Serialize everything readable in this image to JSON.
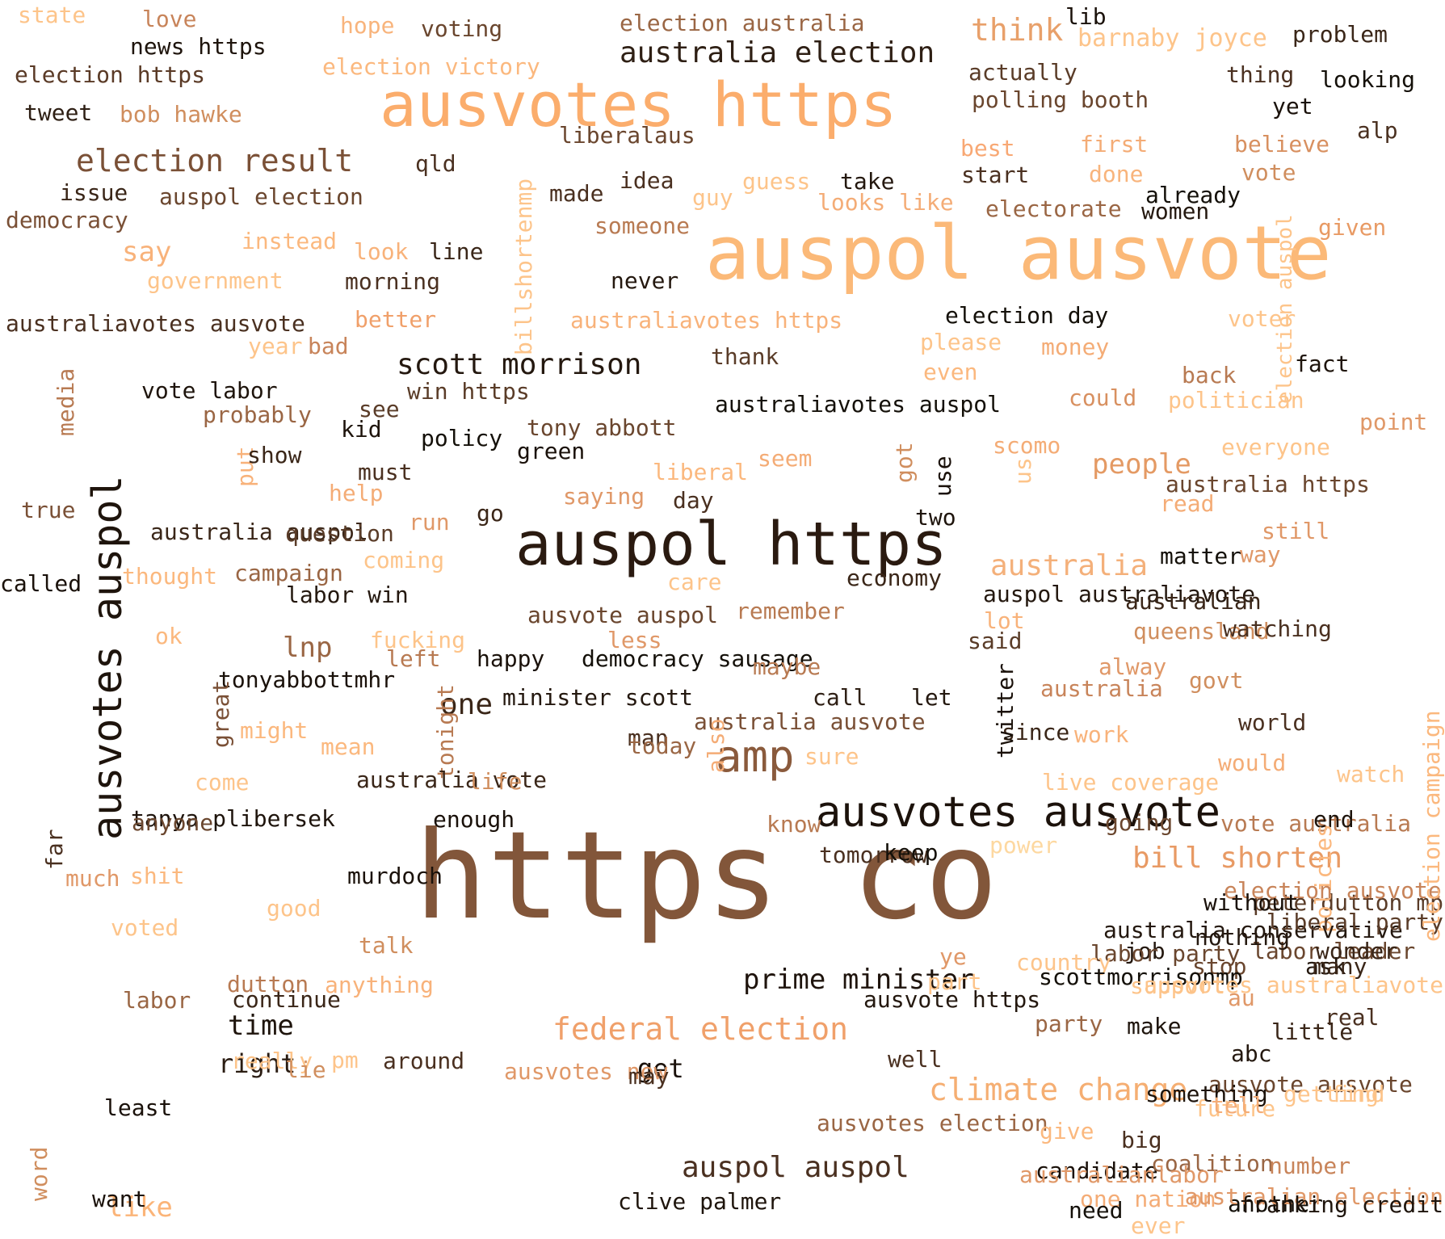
{
  "words": [
    {
      "text": "https co",
      "color": "#82563a"
    },
    {
      "text": "auspol ausvote",
      "color": "#fbb978"
    },
    {
      "text": "ausvotes https",
      "color": "#fbad6c"
    },
    {
      "text": "auspol https",
      "color": "#2a1a10"
    },
    {
      "text": "ausvotes auspol",
      "color": "#1e140c"
    },
    {
      "text": "ausvotes ausvote",
      "color": "#1c120b"
    },
    {
      "text": "election result",
      "color": "#7a5036"
    },
    {
      "text": "australia election",
      "color": "#2e1f14"
    },
    {
      "text": "scott morrison",
      "color": "#24180f"
    },
    {
      "text": "amp",
      "color": "#8a5a3c"
    },
    {
      "text": "federal election",
      "color": "#f0a06a"
    },
    {
      "text": "climate change",
      "color": "#f5ae72"
    },
    {
      "text": "bill shorten",
      "color": "#e89a64"
    },
    {
      "text": "prime minister",
      "color": "#1f140d"
    },
    {
      "text": "auspol auspol",
      "color": "#4a3020"
    },
    {
      "text": "think",
      "color": "#e8a06a"
    },
    {
      "text": "lnp",
      "color": "#9a6644"
    },
    {
      "text": "one",
      "color": "#3a2618"
    },
    {
      "text": "australia",
      "color": "#f4b07a"
    },
    {
      "text": "people",
      "color": "#e49a64"
    },
    {
      "text": "time",
      "color": "#1e140c"
    },
    {
      "text": "like",
      "color": "#fbb478"
    },
    {
      "text": "get",
      "color": "#1a110a"
    },
    {
      "text": "right",
      "color": "#2a1c12"
    },
    {
      "text": "say",
      "color": "#f8b27a"
    },
    {
      "text": "state",
      "color": "#fdc48a"
    },
    {
      "text": "love",
      "color": "#c8845a"
    },
    {
      "text": "hope",
      "color": "#f8b47c"
    },
    {
      "text": "voting",
      "color": "#6a462e"
    },
    {
      "text": "election australia",
      "color": "#9a6644"
    },
    {
      "text": "lib",
      "color": "#1a110a"
    },
    {
      "text": "barnaby joyce",
      "color": "#fdc48a"
    },
    {
      "text": "problem",
      "color": "#3a2618"
    },
    {
      "text": "news https",
      "color": "#1e140c"
    },
    {
      "text": "election victory",
      "color": "#fbb87e"
    },
    {
      "text": "election https",
      "color": "#5a3a26"
    },
    {
      "text": "actually",
      "color": "#5a3c28"
    },
    {
      "text": "thing",
      "color": "#4a3020"
    },
    {
      "text": "looking",
      "color": "#141009"
    },
    {
      "text": "polling booth",
      "color": "#6a462e"
    },
    {
      "text": "yet",
      "color": "#1a110a"
    },
    {
      "text": "tweet",
      "color": "#2e1f14"
    },
    {
      "text": "bob hawke",
      "color": "#d08e5e"
    },
    {
      "text": "liberalaus",
      "color": "#6a462e"
    },
    {
      "text": "alp",
      "color": "#4a3020"
    },
    {
      "text": "best",
      "color": "#f8a874"
    },
    {
      "text": "first",
      "color": "#f4ac76"
    },
    {
      "text": "believe",
      "color": "#d89060"
    },
    {
      "text": "qld",
      "color": "#4a3020"
    },
    {
      "text": "billshortenmp",
      "color": "#fdc48a"
    },
    {
      "text": "done",
      "color": "#f8b47c"
    },
    {
      "text": "vote",
      "color": "#d08e5e"
    },
    {
      "text": "issue",
      "color": "#3a2618"
    },
    {
      "text": "auspol election",
      "color": "#6a462e"
    },
    {
      "text": "made",
      "color": "#4a3020"
    },
    {
      "text": "idea",
      "color": "#4a3020"
    },
    {
      "text": "guess",
      "color": "#fdc48a"
    },
    {
      "text": "take",
      "color": "#24180f"
    },
    {
      "text": "start",
      "color": "#4a3020"
    },
    {
      "text": "already",
      "color": "#141009"
    },
    {
      "text": "democracy",
      "color": "#7a5036"
    },
    {
      "text": "guy",
      "color": "#fdc48a"
    },
    {
      "text": "looks like",
      "color": "#f4ac76"
    },
    {
      "text": "electorate",
      "color": "#9a6644"
    },
    {
      "text": "women",
      "color": "#24180f"
    },
    {
      "text": "given",
      "color": "#e89a64"
    },
    {
      "text": "election auspol",
      "color": "#fdc48a"
    },
    {
      "text": "someone",
      "color": "#b87a52"
    },
    {
      "text": "instead",
      "color": "#fbb87e"
    },
    {
      "text": "look",
      "color": "#f8b27a"
    },
    {
      "text": "line",
      "color": "#3a2618"
    },
    {
      "text": "government",
      "color": "#fdc48a"
    },
    {
      "text": "morning",
      "color": "#4a3020"
    },
    {
      "text": "never",
      "color": "#24180f"
    },
    {
      "text": "australiavotes ausvote",
      "color": "#4a3020"
    },
    {
      "text": "better",
      "color": "#f0a06a"
    },
    {
      "text": "australiavotes https",
      "color": "#f8b27a"
    },
    {
      "text": "election day",
      "color": "#141009"
    },
    {
      "text": "voter",
      "color": "#fdc48a"
    },
    {
      "text": "year",
      "color": "#fdc48a"
    },
    {
      "text": "bad",
      "color": "#c8845a"
    },
    {
      "text": "please",
      "color": "#fdc48a"
    },
    {
      "text": "money",
      "color": "#f4ac76"
    },
    {
      "text": "thank",
      "color": "#5a3c28"
    },
    {
      "text": "back",
      "color": "#b87a52"
    },
    {
      "text": "fact",
      "color": "#1e140c"
    },
    {
      "text": "even",
      "color": "#fbb87e"
    },
    {
      "text": "media",
      "color": "#b87a52"
    },
    {
      "text": "vote labor",
      "color": "#1e140c"
    },
    {
      "text": "win https",
      "color": "#5a3c28"
    },
    {
      "text": "australiavotes auspol",
      "color": "#141009"
    },
    {
      "text": "could",
      "color": "#d89060"
    },
    {
      "text": "politician",
      "color": "#fdc48a"
    },
    {
      "text": "probably",
      "color": "#9a6644"
    },
    {
      "text": "see",
      "color": "#5a3c28"
    },
    {
      "text": "point",
      "color": "#e09868"
    },
    {
      "text": "kid",
      "color": "#1e140c"
    },
    {
      "text": "policy",
      "color": "#141009"
    },
    {
      "text": "tony abbott",
      "color": "#6a462e"
    },
    {
      "text": "scomo",
      "color": "#f4ac76"
    },
    {
      "text": "green",
      "color": "#1a110a"
    },
    {
      "text": "everyone",
      "color": "#fdc48a"
    },
    {
      "text": "put",
      "color": "#f8b27a"
    },
    {
      "text": "show",
      "color": "#3a2618"
    },
    {
      "text": "got",
      "color": "#d08e5e"
    },
    {
      "text": "seem",
      "color": "#f4ac76"
    },
    {
      "text": "must",
      "color": "#4a3020"
    },
    {
      "text": "liberal",
      "color": "#fbb87e"
    },
    {
      "text": "use",
      "color": "#1a110a"
    },
    {
      "text": "australia https",
      "color": "#6a462e"
    },
    {
      "text": "help",
      "color": "#f4ac76"
    },
    {
      "text": "saying",
      "color": "#e09868"
    },
    {
      "text": "day",
      "color": "#4a3020"
    },
    {
      "text": "us",
      "color": "#fdc48a"
    },
    {
      "text": "read",
      "color": "#f4ac76"
    },
    {
      "text": "true",
      "color": "#7a5036"
    },
    {
      "text": "go",
      "color": "#3a2618"
    },
    {
      "text": "two",
      "color": "#1e140c"
    },
    {
      "text": "still",
      "color": "#e09868"
    },
    {
      "text": "run",
      "color": "#e09868"
    },
    {
      "text": "australia auspol",
      "color": "#3a2618"
    },
    {
      "text": "question",
      "color": "#5a3c28"
    },
    {
      "text": "matter",
      "color": "#141009"
    },
    {
      "text": "way",
      "color": "#e09868"
    },
    {
      "text": "called",
      "color": "#1a110a"
    },
    {
      "text": "thought",
      "color": "#fbb87e"
    },
    {
      "text": "campaign",
      "color": "#9a6644"
    },
    {
      "text": "coming",
      "color": "#fdc48a"
    },
    {
      "text": "care",
      "color": "#fdc48a"
    },
    {
      "text": "economy",
      "color": "#3a2618"
    },
    {
      "text": "labor win",
      "color": "#24180f"
    },
    {
      "text": "auspol australiavote",
      "color": "#24180f"
    },
    {
      "text": "australian",
      "color": "#3a2618"
    },
    {
      "text": "ausvote auspol",
      "color": "#6a462e"
    },
    {
      "text": "remember",
      "color": "#b87a52"
    },
    {
      "text": "lot",
      "color": "#f8b27a"
    },
    {
      "text": "queensland",
      "color": "#d08e5e"
    },
    {
      "text": "watching",
      "color": "#4a3020"
    },
    {
      "text": "ok",
      "color": "#fbb87e"
    },
    {
      "text": "fucking",
      "color": "#fdc48a"
    },
    {
      "text": "less",
      "color": "#e09868"
    },
    {
      "text": "said",
      "color": "#5a3c28"
    },
    {
      "text": "left",
      "color": "#b87a52"
    },
    {
      "text": "happy",
      "color": "#1a110a"
    },
    {
      "text": "democracy sausage",
      "color": "#141009"
    },
    {
      "text": "maybe",
      "color": "#b87a52"
    },
    {
      "text": "alway",
      "color": "#e09868"
    },
    {
      "text": "tonyabbottmhr",
      "color": "#1a110a"
    },
    {
      "text": "govt",
      "color": "#d08e5e"
    },
    {
      "text": "australia",
      "color": "#c8845a"
    },
    {
      "text": "great",
      "color": "#7a5036"
    },
    {
      "text": "minister scott",
      "color": "#24180f"
    },
    {
      "text": "call",
      "color": "#2e1f14"
    },
    {
      "text": "let",
      "color": "#24180f"
    },
    {
      "text": "tonight",
      "color": "#b87a52"
    },
    {
      "text": "australia ausvote",
      "color": "#7a5036"
    },
    {
      "text": "world",
      "color": "#4a3020"
    },
    {
      "text": "might",
      "color": "#fbb87e"
    },
    {
      "text": "man",
      "color": "#4a3020"
    },
    {
      "text": "work",
      "color": "#f8b27a"
    },
    {
      "text": "since",
      "color": "#3a2618"
    },
    {
      "text": "mean",
      "color": "#fbb87e"
    },
    {
      "text": "today",
      "color": "#9a6644"
    },
    {
      "text": "sure",
      "color": "#fdc48a"
    },
    {
      "text": "twitter",
      "color": "#1a110a"
    },
    {
      "text": "would",
      "color": "#f4ac76"
    },
    {
      "text": "come",
      "color": "#fdc48a"
    },
    {
      "text": "australia vote",
      "color": "#3a2618"
    },
    {
      "text": "life",
      "color": "#d08e5e"
    },
    {
      "text": "also",
      "color": "#f4ac76"
    },
    {
      "text": "live coverage",
      "color": "#fdc48a"
    },
    {
      "text": "watch",
      "color": "#fdc48a"
    },
    {
      "text": "vote australia",
      "color": "#b87a52"
    },
    {
      "text": "tanya plibersek",
      "color": "#1e140c"
    },
    {
      "text": "peterdutton mp",
      "color": "#5a3c28"
    },
    {
      "text": "far",
      "color": "#4a3020"
    },
    {
      "text": "anyone",
      "color": "#6a462e"
    },
    {
      "text": "enough",
      "color": "#1a110a"
    },
    {
      "text": "know",
      "color": "#b87a52"
    },
    {
      "text": "end",
      "color": "#1e140c"
    },
    {
      "text": "power",
      "color": "#fdd8a0"
    },
    {
      "text": "tomorrow",
      "color": "#4a3020"
    },
    {
      "text": "policies",
      "color": "#fbb87e"
    },
    {
      "text": "much",
      "color": "#e09868"
    },
    {
      "text": "murdoch",
      "color": "#1a110a"
    },
    {
      "text": "good",
      "color": "#fdc48a"
    },
    {
      "text": "going",
      "color": "#6a462e"
    },
    {
      "text": "election ausvote",
      "color": "#c8845a"
    },
    {
      "text": "without",
      "color": "#1a110a"
    },
    {
      "text": "australia conservative",
      "color": "#24180f"
    },
    {
      "text": "liberal party",
      "color": "#5a3c28"
    },
    {
      "text": "election campaign",
      "color": "#fbb87e"
    },
    {
      "text": "job",
      "color": "#24180f"
    },
    {
      "text": "labor leader",
      "color": "#6a462e"
    },
    {
      "text": "shit",
      "color": "#fbb87e"
    },
    {
      "text": "keep",
      "color": "#141009"
    },
    {
      "text": "au",
      "color": "#e09868"
    },
    {
      "text": "wonder",
      "color": "#3a2618"
    },
    {
      "text": "nothing",
      "color": "#24180f"
    },
    {
      "text": "word",
      "color": "#d08e5e"
    },
    {
      "text": "voted",
      "color": "#fdc48a"
    },
    {
      "text": "talk",
      "color": "#d08e5e"
    },
    {
      "text": "ye",
      "color": "#e09868"
    },
    {
      "text": "labor party",
      "color": "#6a462e"
    },
    {
      "text": "country",
      "color": "#fdc48a"
    },
    {
      "text": "stop",
      "color": "#6a462e"
    },
    {
      "text": "ask",
      "color": "#24180f"
    },
    {
      "text": "dutton",
      "color": "#b87a52"
    },
    {
      "text": "ausvote https",
      "color": "#24180f"
    },
    {
      "text": "labor",
      "color": "#9a6644"
    },
    {
      "text": "continue",
      "color": "#3a2618"
    },
    {
      "text": "many",
      "color": "#3a2618"
    },
    {
      "text": "scottmorrisonmp",
      "color": "#141009"
    },
    {
      "text": "anything",
      "color": "#f8b27a"
    },
    {
      "text": "part",
      "color": "#fdc48a"
    },
    {
      "text": "ausvotes australiavote",
      "color": "#fdc48a"
    },
    {
      "text": "party",
      "color": "#9a6644"
    },
    {
      "text": "support",
      "color": "#fdc48a"
    },
    {
      "text": "make",
      "color": "#1e140c"
    },
    {
      "text": "real",
      "color": "#4a3020"
    },
    {
      "text": "well",
      "color": "#4a3020"
    },
    {
      "text": "little",
      "color": "#3a2618"
    },
    {
      "text": "really",
      "color": "#fdc48a"
    },
    {
      "text": "pm",
      "color": "#fdc48a"
    },
    {
      "text": "around",
      "color": "#4a3020"
    },
    {
      "text": "ausvotes new",
      "color": "#e09868"
    },
    {
      "text": "may",
      "color": "#4a3020"
    },
    {
      "text": "abc",
      "color": "#24180f"
    },
    {
      "text": "ausvote ausvote",
      "color": "#6a462e"
    },
    {
      "text": "lie",
      "color": "#d08e5e"
    },
    {
      "text": "future",
      "color": "#fdc48a"
    },
    {
      "text": "something",
      "color": "#1e140c"
    },
    {
      "text": "tell",
      "color": "#f4ac76"
    },
    {
      "text": "getting",
      "color": "#fdc48a"
    },
    {
      "text": "find",
      "color": "#fdc48a"
    },
    {
      "text": "ausvotes election",
      "color": "#9a6644"
    },
    {
      "text": "give",
      "color": "#fbb87e"
    },
    {
      "text": "big",
      "color": "#4a3020"
    },
    {
      "text": "least",
      "color": "#1a110a"
    },
    {
      "text": "candidate",
      "color": "#1a110a"
    },
    {
      "text": "coalition",
      "color": "#9a6644"
    },
    {
      "text": "australianlabor",
      "color": "#e09868"
    },
    {
      "text": "want",
      "color": "#1a110a"
    },
    {
      "text": "one nation",
      "color": "#f4ac76"
    },
    {
      "text": "clive palmer",
      "color": "#1e140c"
    },
    {
      "text": "number",
      "color": "#c8845a"
    },
    {
      "text": "another",
      "color": "#141009"
    },
    {
      "text": "need",
      "color": "#141009"
    },
    {
      "text": "australian election",
      "color": "#e09868"
    },
    {
      "text": "franking credit",
      "color": "#1e140c"
    },
    {
      "text": "ever",
      "color": "#fdc48a"
    }
  ]
}
